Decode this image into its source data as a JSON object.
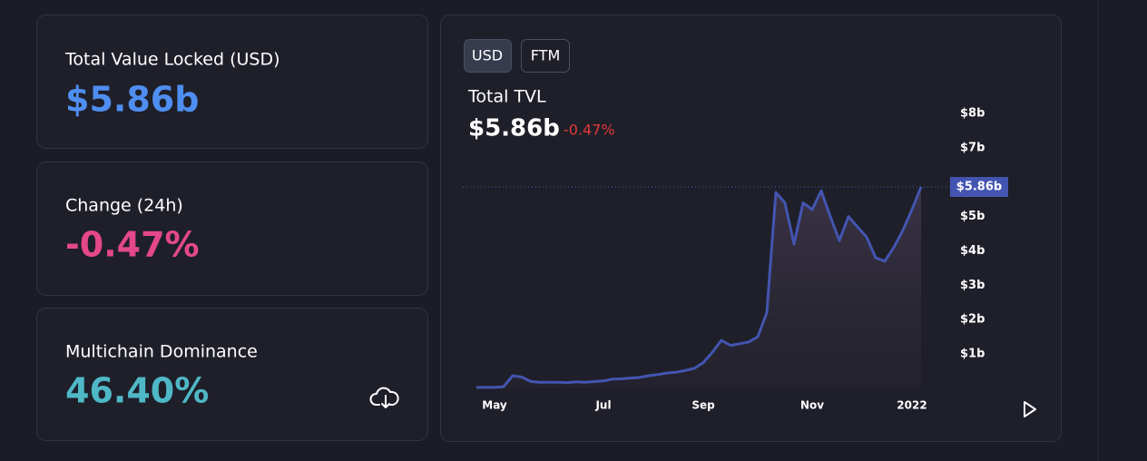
{
  "cards": [
    {
      "label": "Total Value Locked (USD)",
      "value": "$5.86b"
    },
    {
      "label": "Change (24h)",
      "value": "-0.47%"
    },
    {
      "label": "Multichain Dominance",
      "value": "46.40%"
    }
  ],
  "toggle": [
    "USD",
    "FTM"
  ],
  "chart_data": {
    "type": "area",
    "title": "Total TVL",
    "subtitle": "$5.86b",
    "change": "-0.47%",
    "color": "#4355b0",
    "categories": [
      null,
      null,
      "May",
      null,
      null,
      null,
      null,
      null,
      null,
      null,
      null,
      null,
      null,
      null,
      "Jul",
      null,
      null,
      null,
      null,
      null,
      null,
      null,
      null,
      null,
      null,
      "Sep",
      null,
      null,
      null,
      null,
      null,
      null,
      null,
      null,
      null,
      null,
      null,
      "Nov",
      null,
      null,
      null,
      null,
      null,
      null,
      null,
      null,
      null,
      null,
      "2022",
      null
    ],
    "values": [
      0.03,
      0.03,
      0.03,
      0.05,
      0.37,
      0.33,
      0.2,
      0.18,
      0.18,
      0.18,
      0.17,
      0.19,
      0.18,
      0.2,
      0.22,
      0.27,
      0.28,
      0.3,
      0.32,
      0.37,
      0.4,
      0.45,
      0.47,
      0.52,
      0.58,
      0.75,
      1.05,
      1.4,
      1.25,
      1.3,
      1.35,
      1.5,
      2.2,
      5.7,
      5.4,
      4.2,
      5.4,
      5.2,
      5.75,
      5.0,
      4.3,
      5.0,
      4.7,
      4.4,
      3.8,
      3.7,
      4.1,
      4.6,
      5.2,
      5.86
    ],
    "ylim": [
      0,
      8.5
    ],
    "yticks": [
      {
        "value": 1,
        "label": "$1b"
      },
      {
        "value": 2,
        "label": "$2b"
      },
      {
        "value": 3,
        "label": "$3b"
      },
      {
        "value": 4,
        "label": "$4b"
      },
      {
        "value": 5,
        "label": "$5b"
      },
      {
        "value": 7,
        "label": "$7b"
      },
      {
        "value": 8,
        "label": "$8b"
      }
    ],
    "current_value": {
      "value": 5.86,
      "label": "$5.86b"
    }
  }
}
